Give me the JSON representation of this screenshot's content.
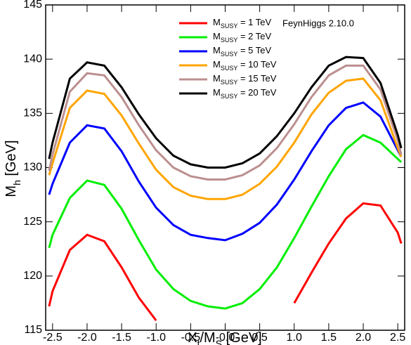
{
  "chart_data": {
    "type": "line",
    "annotation": "FeynHiggs 2.10.0",
    "xlabel": [
      {
        "text": "X"
      },
      {
        "text": "t",
        "sub": true
      },
      {
        "text": "/M"
      },
      {
        "text": "S",
        "sub": true
      },
      {
        "text": " [GeV]"
      }
    ],
    "ylabel": [
      {
        "text": "M"
      },
      {
        "text": "h",
        "sub": true
      },
      {
        "text": " [GeV]"
      }
    ],
    "xlim": [
      -2.6,
      2.6
    ],
    "ylim": [
      115,
      145
    ],
    "xticks": [
      -2.5,
      {
        "value": -2,
        "label": "-2.0"
      },
      -1.5,
      {
        "value": -1,
        "label": "-1.0"
      },
      -0.5,
      {
        "value": 0,
        "label": "-0.0"
      },
      0.5,
      {
        "value": 1,
        "label": "1.0"
      },
      1.5,
      {
        "value": 2,
        "label": "2.0"
      },
      2.5
    ],
    "yticks": [
      115,
      120,
      125,
      130,
      135,
      140,
      145
    ],
    "x": [
      -2.55,
      -2.5,
      -2.25,
      -2,
      -1.75,
      -1.5,
      -1.25,
      -1,
      -0.75,
      -0.5,
      -0.25,
      0,
      0.25,
      0.5,
      0.75,
      1,
      1.25,
      1.5,
      1.75,
      2,
      2.25,
      2.5,
      2.55
    ],
    "series": [
      {
        "name": [
          {
            "text": "M"
          },
          {
            "text": "SUSY",
            "sub": true
          },
          {
            "text": " = 1 TeV"
          }
        ],
        "color": "#ff0000",
        "values": [
          117.2,
          118.6,
          122.4,
          123.8,
          123.2,
          120.8,
          118.0,
          115.9,
          null,
          null,
          null,
          null,
          null,
          null,
          null,
          117.5,
          120.3,
          123.0,
          125.3,
          126.7,
          126.5,
          124.0,
          123.0
        ]
      },
      {
        "name": [
          {
            "text": "M"
          },
          {
            "text": "SUSY",
            "sub": true
          },
          {
            "text": " = 2 TeV"
          }
        ],
        "color": "#00ee00",
        "values": [
          122.6,
          123.8,
          127.2,
          128.8,
          128.4,
          126.2,
          123.3,
          120.6,
          118.8,
          117.7,
          117.2,
          117.0,
          117.5,
          118.8,
          120.8,
          123.5,
          126.4,
          129.2,
          131.7,
          133.0,
          132.3,
          130.8,
          130.5
        ]
      },
      {
        "name": [
          {
            "text": "M"
          },
          {
            "text": "SUSY",
            "sub": true
          },
          {
            "text": " = 5 TeV"
          }
        ],
        "color": "#0000ff",
        "values": [
          127.5,
          128.5,
          132.3,
          133.9,
          133.6,
          131.5,
          128.7,
          126.3,
          124.7,
          123.8,
          123.5,
          123.3,
          123.9,
          124.9,
          126.6,
          128.9,
          131.5,
          133.9,
          135.5,
          136.0,
          134.7,
          131.6,
          131.0
        ]
      },
      {
        "name": [
          {
            "text": "M"
          },
          {
            "text": "SUSY",
            "sub": true
          },
          {
            "text": " = 10 TeV"
          }
        ],
        "color": "#ffa500",
        "values": [
          129.3,
          130.4,
          135.5,
          137.1,
          136.8,
          134.8,
          132.2,
          129.8,
          128.2,
          127.4,
          127.1,
          127.1,
          127.5,
          128.5,
          130.1,
          132.3,
          134.9,
          136.9,
          138.0,
          138.2,
          136.2,
          131.8,
          131.0
        ]
      },
      {
        "name": [
          {
            "text": "M"
          },
          {
            "text": "SUSY",
            "sub": true
          },
          {
            "text": " = 15 TeV"
          }
        ],
        "color": "#bc8f8f",
        "values": [
          129.7,
          131.2,
          137.0,
          138.7,
          138.5,
          136.5,
          133.9,
          131.6,
          130.0,
          129.2,
          128.9,
          128.9,
          129.3,
          130.2,
          131.8,
          134.0,
          136.5,
          138.5,
          139.4,
          139.4,
          137.2,
          132.5,
          131.2
        ]
      },
      {
        "name": [
          {
            "text": "M"
          },
          {
            "text": "SUSY",
            "sub": true
          },
          {
            "text": " = 20 TeV"
          }
        ],
        "color": "#000000",
        "values": [
          130.8,
          132.3,
          138.2,
          139.7,
          139.4,
          137.4,
          134.9,
          132.7,
          131.1,
          130.3,
          130.0,
          130.0,
          130.4,
          131.3,
          132.9,
          135.0,
          137.4,
          139.4,
          140.2,
          140.1,
          137.8,
          133.0,
          131.8
        ]
      }
    ]
  }
}
